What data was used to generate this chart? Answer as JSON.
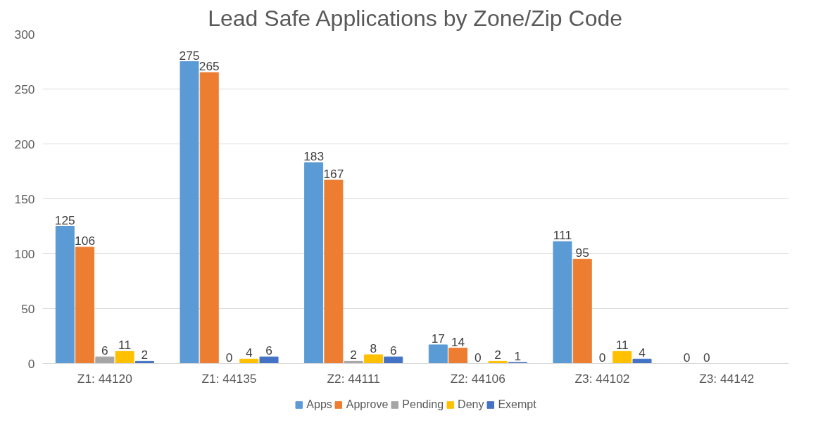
{
  "chart_data": {
    "type": "bar",
    "title": "Lead Safe Applications by Zone/Zip Code",
    "categories": [
      "Z1: 44120",
      "Z1: 44135",
      "Z2: 44111",
      "Z2: 44106",
      "Z3: 44102",
      "Z3: 44142"
    ],
    "series": [
      {
        "name": "Apps",
        "color": "#5b9bd5",
        "values": [
          125,
          275,
          183,
          17,
          111,
          0
        ]
      },
      {
        "name": "Approve",
        "color": "#ed7d31",
        "values": [
          106,
          265,
          167,
          14,
          95,
          0
        ]
      },
      {
        "name": "Pending",
        "color": "#a5a5a5",
        "values": [
          6,
          0,
          2,
          0,
          0,
          null
        ]
      },
      {
        "name": "Deny",
        "color": "#ffc000",
        "values": [
          11,
          4,
          8,
          2,
          11,
          null
        ]
      },
      {
        "name": "Exempt",
        "color": "#4472c4",
        "values": [
          2,
          6,
          6,
          1,
          4,
          null
        ]
      }
    ],
    "ylim": [
      0,
      300
    ],
    "yticks": [
      0,
      50,
      100,
      150,
      200,
      250,
      300
    ],
    "grid": "y",
    "legend": "bottom",
    "data_labels": true
  }
}
